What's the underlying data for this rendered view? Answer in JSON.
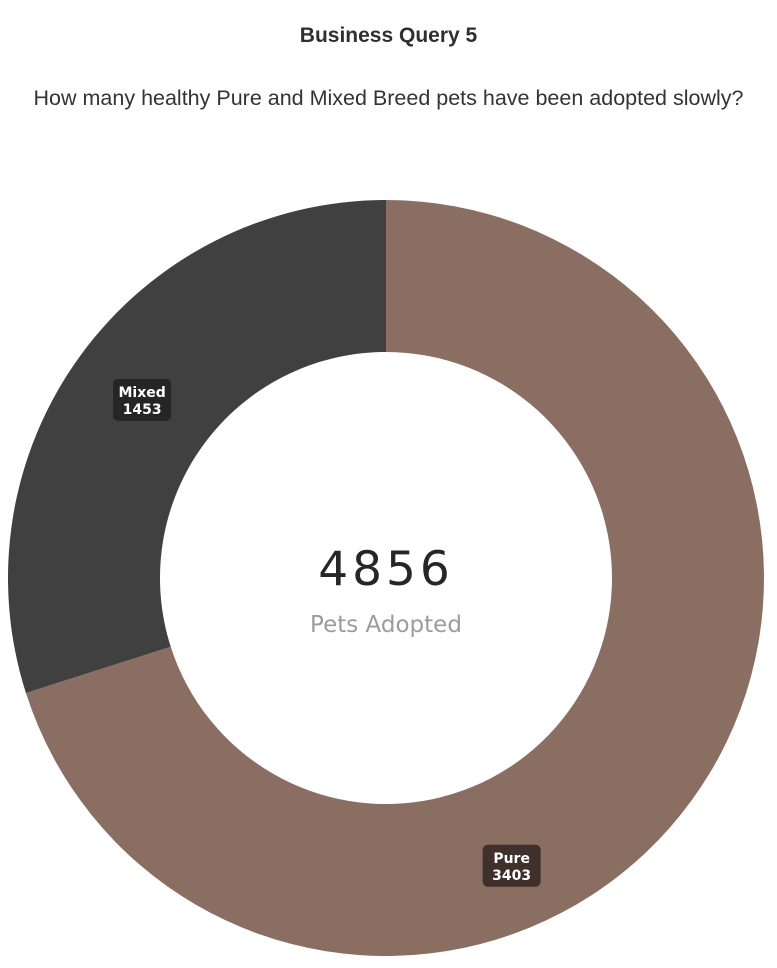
{
  "header": {
    "title": "Business Query 5",
    "subtitle": "How many healthy Pure and Mixed Breed pets have been adopted slowly?"
  },
  "colors": {
    "pure": "#8b6e62",
    "mixed": "#404040",
    "pure_label_bg": "#3f302b",
    "mixed_label_bg": "#252525"
  },
  "chart_data": {
    "type": "pie",
    "style": "donut",
    "center_value": "4856",
    "center_label": "Pets Adopted",
    "slices": [
      {
        "label": "Pure",
        "value": 3403,
        "value_text": "3403",
        "color": "#8b6e62"
      },
      {
        "label": "Mixed",
        "value": 1453,
        "value_text": "1453",
        "color": "#404040"
      }
    ],
    "legend": "none"
  }
}
